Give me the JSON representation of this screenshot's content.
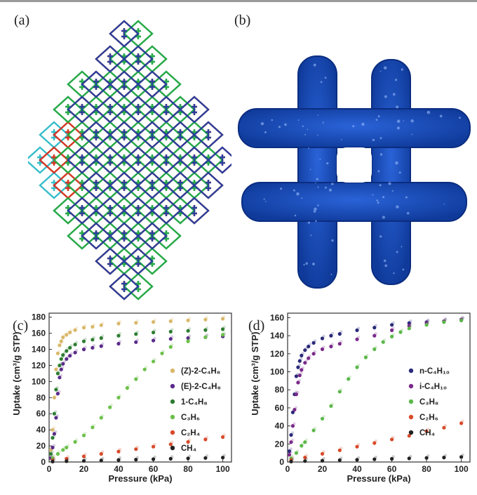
{
  "panels": {
    "a": "(a)",
    "b": "(b)",
    "c": "(c)",
    "d": "(d)"
  },
  "framework_colors": [
    "#e8d82a",
    "#25b8c6",
    "#d42828",
    "#2aa83a",
    "#1f3fa6"
  ],
  "pore_color": "#1c52c4",
  "chart_data": [
    {
      "type": "scatter",
      "panel": "(c)",
      "xlabel": "Pressure (kPa)",
      "ylabel": "Uptake (cm³/g STP)",
      "xlim": [
        0,
        105
      ],
      "ylim": [
        0,
        185
      ],
      "xticks": [
        0,
        20,
        40,
        60,
        80,
        100
      ],
      "yticks": [
        0,
        20,
        40,
        60,
        80,
        100,
        120,
        140,
        160,
        180
      ],
      "legend_position": "right",
      "series": [
        {
          "name": "(Z)-2-C₄H₈",
          "color": "#d9b86a",
          "x": [
            1,
            2,
            3,
            4,
            5,
            6,
            7,
            8,
            10,
            12,
            15,
            20,
            25,
            30,
            40,
            50,
            60,
            70,
            80,
            90,
            100
          ],
          "y": [
            15,
            40,
            80,
            115,
            135,
            145,
            150,
            155,
            158,
            161,
            164,
            167,
            168,
            170,
            172,
            173,
            174,
            175,
            176,
            177,
            178
          ]
        },
        {
          "name": "(E)-2-C₄H₈",
          "color": "#5a2a8a",
          "x": [
            1,
            2,
            3,
            4,
            5,
            6,
            7,
            8,
            10,
            12,
            15,
            20,
            25,
            30,
            40,
            50,
            60,
            70,
            80,
            90,
            100
          ],
          "y": [
            5,
            18,
            35,
            55,
            85,
            105,
            115,
            122,
            128,
            132,
            136,
            140,
            142,
            144,
            147,
            149,
            151,
            153,
            154,
            155,
            156
          ]
        },
        {
          "name": "1-C₄H₈",
          "color": "#2e7d32",
          "x": [
            1,
            2,
            3,
            4,
            5,
            6,
            7,
            8,
            10,
            12,
            15,
            20,
            25,
            30,
            40,
            50,
            60,
            70,
            80,
            90,
            100
          ],
          "y": [
            10,
            30,
            60,
            90,
            110,
            120,
            128,
            133,
            138,
            142,
            146,
            150,
            152,
            154,
            157,
            159,
            161,
            162,
            163,
            164,
            165
          ]
        },
        {
          "name": "C₃H₆",
          "color": "#6cc04a",
          "x": [
            2,
            5,
            8,
            10,
            15,
            20,
            25,
            30,
            35,
            40,
            45,
            50,
            55,
            60,
            65,
            70,
            80,
            90,
            100
          ],
          "y": [
            5,
            10,
            15,
            18,
            25,
            33,
            43,
            55,
            68,
            80,
            92,
            103,
            115,
            125,
            135,
            143,
            150,
            155,
            158
          ]
        },
        {
          "name": "C₂H₄",
          "color": "#d84a2a",
          "x": [
            2,
            10,
            20,
            30,
            40,
            50,
            60,
            70,
            80,
            90,
            100
          ],
          "y": [
            2,
            4,
            7,
            10,
            13,
            16,
            19,
            22,
            25,
            28,
            31
          ]
        },
        {
          "name": "CH₄",
          "color": "#222222",
          "x": [
            2,
            10,
            20,
            30,
            40,
            50,
            60,
            70,
            80,
            90,
            100
          ],
          "y": [
            0.5,
            1,
            1.5,
            2,
            2.5,
            3,
            3.5,
            4,
            4.5,
            5,
            5.5
          ]
        }
      ]
    },
    {
      "type": "scatter",
      "panel": "(d)",
      "xlabel": "Pressure (kPa)",
      "ylabel": "Uptake (cm³/g STP)",
      "xlim": [
        0,
        105
      ],
      "ylim": [
        0,
        165
      ],
      "xticks": [
        0,
        20,
        40,
        60,
        80,
        100
      ],
      "yticks": [
        0,
        20,
        40,
        60,
        80,
        100,
        120,
        140,
        160
      ],
      "legend_position": "right",
      "series": [
        {
          "name": "n-C₄H₁₀",
          "color": "#2a2a7a",
          "x": [
            1,
            2,
            3,
            4,
            5,
            6,
            7,
            8,
            10,
            12,
            15,
            20,
            25,
            30,
            40,
            50,
            60,
            70,
            80,
            90,
            100
          ],
          "y": [
            12,
            30,
            55,
            75,
            95,
            105,
            112,
            118,
            124,
            128,
            132,
            137,
            140,
            142,
            146,
            149,
            152,
            154,
            155,
            156,
            157
          ]
        },
        {
          "name": "i-C₄H₁₀",
          "color": "#7a2a8a",
          "x": [
            1,
            2,
            3,
            4,
            5,
            6,
            7,
            8,
            10,
            12,
            15,
            20,
            25,
            30,
            40,
            50,
            60,
            70,
            80,
            90,
            100
          ],
          "y": [
            8,
            22,
            40,
            58,
            75,
            88,
            96,
            102,
            110,
            115,
            120,
            125,
            128,
            131,
            136,
            140,
            146,
            151,
            154,
            156,
            158
          ]
        },
        {
          "name": "C₃H₈",
          "color": "#5cb84a",
          "x": [
            2,
            5,
            8,
            10,
            15,
            20,
            25,
            30,
            35,
            40,
            45,
            50,
            55,
            60,
            65,
            70,
            80,
            90,
            100
          ],
          "y": [
            4,
            10,
            18,
            22,
            35,
            48,
            62,
            78,
            92,
            105,
            116,
            125,
            133,
            139,
            144,
            148,
            152,
            155,
            157
          ]
        },
        {
          "name": "C₂H₆",
          "color": "#d84a2a",
          "x": [
            2,
            10,
            20,
            30,
            40,
            50,
            60,
            70,
            80,
            90,
            100
          ],
          "y": [
            2,
            5,
            9,
            13,
            17,
            21,
            25,
            29,
            34,
            38,
            43
          ]
        },
        {
          "name": "CH₄",
          "color": "#222222",
          "x": [
            2,
            10,
            20,
            30,
            40,
            50,
            60,
            70,
            80,
            90,
            100
          ],
          "y": [
            0.5,
            1,
            1.5,
            2,
            2.5,
            3,
            3.5,
            4,
            4.5,
            5,
            5.5
          ]
        }
      ]
    }
  ]
}
